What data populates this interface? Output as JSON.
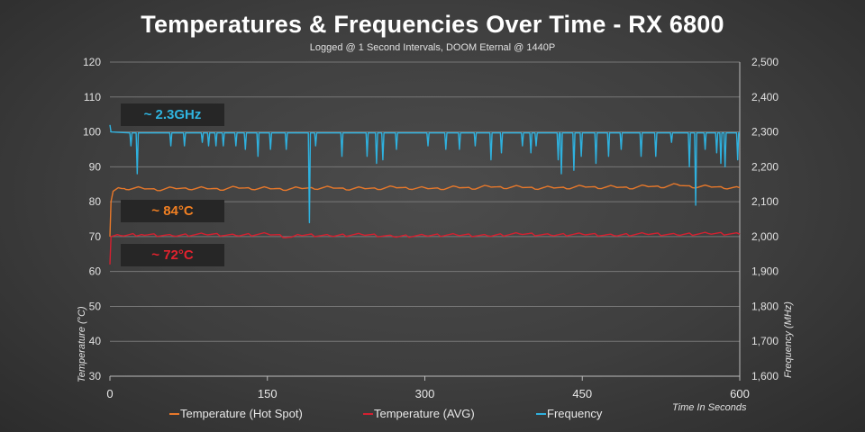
{
  "chart_data": {
    "type": "line",
    "title": "Temperatures & Frequencies Over Time - RX 6800",
    "subtitle": "Logged @ 1 Second Intervals, DOOM Eternal @ 1440P",
    "xlabel": "Time In Seconds",
    "ylabel": "Temperature (°C)",
    "y2label": "Frequency (MHz)",
    "xlim": [
      0,
      600
    ],
    "ylim": [
      30,
      120
    ],
    "y2lim": [
      1600,
      2500
    ],
    "xticks": [
      "0",
      "150",
      "300",
      "450",
      "600"
    ],
    "yticks": [
      "30",
      "40",
      "50",
      "60",
      "70",
      "80",
      "90",
      "100",
      "110",
      "120"
    ],
    "y2ticks": [
      "1,600",
      "1,700",
      "1,800",
      "1,900",
      "2,000",
      "2,100",
      "2,200",
      "2,300",
      "2,400",
      "2,500"
    ],
    "grid": true,
    "legend_position": "bottom",
    "series": [
      {
        "name": "Temperature (Hot Spot)",
        "axis": "left",
        "color": "#e8782a",
        "points": [
          [
            0,
            70
          ],
          [
            1,
            80
          ],
          [
            3,
            83
          ],
          [
            8,
            84
          ],
          [
            15,
            83.5
          ],
          [
            30,
            84
          ],
          [
            45,
            83.2
          ],
          [
            60,
            84
          ],
          [
            75,
            83.5
          ],
          [
            90,
            84
          ],
          [
            105,
            83.3
          ],
          [
            120,
            84.2
          ],
          [
            135,
            83.5
          ],
          [
            150,
            84
          ],
          [
            165,
            83.3
          ],
          [
            180,
            84
          ],
          [
            195,
            83.6
          ],
          [
            210,
            84.2
          ],
          [
            225,
            83.4
          ],
          [
            240,
            84
          ],
          [
            255,
            83.5
          ],
          [
            270,
            84.3
          ],
          [
            285,
            83.6
          ],
          [
            300,
            84
          ],
          [
            315,
            83.5
          ],
          [
            330,
            84.3
          ],
          [
            345,
            83.6
          ],
          [
            360,
            84.5
          ],
          [
            375,
            83.8
          ],
          [
            390,
            84.4
          ],
          [
            405,
            83.6
          ],
          [
            420,
            84.2
          ],
          [
            435,
            83.7
          ],
          [
            450,
            84.5
          ],
          [
            465,
            83.8
          ],
          [
            480,
            84.4
          ],
          [
            495,
            83.7
          ],
          [
            510,
            84.6
          ],
          [
            525,
            84
          ],
          [
            540,
            85
          ],
          [
            555,
            84
          ],
          [
            570,
            84.5
          ],
          [
            585,
            83.8
          ],
          [
            600,
            84
          ]
        ]
      },
      {
        "name": "Temperature (AVG)",
        "axis": "left",
        "color": "#d42030",
        "points": [
          [
            0,
            62
          ],
          [
            1,
            70
          ],
          [
            10,
            70.3
          ],
          [
            30,
            70.6
          ],
          [
            60,
            70.2
          ],
          [
            90,
            70.7
          ],
          [
            120,
            70.3
          ],
          [
            150,
            70.8
          ],
          [
            170,
            69.8
          ],
          [
            180,
            70.5
          ],
          [
            210,
            70.2
          ],
          [
            240,
            70.6
          ],
          [
            270,
            70
          ],
          [
            300,
            70.3
          ],
          [
            330,
            70.5
          ],
          [
            360,
            70.2
          ],
          [
            390,
            70.8
          ],
          [
            420,
            70.4
          ],
          [
            450,
            70.7
          ],
          [
            480,
            70.3
          ],
          [
            510,
            70.8
          ],
          [
            540,
            70.5
          ],
          [
            570,
            70.9
          ],
          [
            600,
            70.7
          ]
        ]
      },
      {
        "name": "Frequency",
        "axis": "right",
        "color": "#2fb1de",
        "baseline": 2297,
        "start": [
          [
            0,
            2320
          ],
          [
            1,
            2300
          ]
        ],
        "dips": [
          [
            20,
            2260
          ],
          [
            26,
            2180
          ],
          [
            58,
            2260
          ],
          [
            71,
            2260
          ],
          [
            88,
            2270
          ],
          [
            94,
            2260
          ],
          [
            101,
            2260
          ],
          [
            108,
            2260
          ],
          [
            120,
            2260
          ],
          [
            129,
            2250
          ],
          [
            141,
            2230
          ],
          [
            153,
            2250
          ],
          [
            168,
            2250
          ],
          [
            190,
            2040
          ],
          [
            196,
            2260
          ],
          [
            221,
            2230
          ],
          [
            245,
            2230
          ],
          [
            254,
            2210
          ],
          [
            260,
            2220
          ],
          [
            273,
            2250
          ],
          [
            303,
            2260
          ],
          [
            320,
            2250
          ],
          [
            333,
            2250
          ],
          [
            348,
            2260
          ],
          [
            363,
            2220
          ],
          [
            373,
            2240
          ],
          [
            393,
            2260
          ],
          [
            401,
            2240
          ],
          [
            406,
            2260
          ],
          [
            427,
            2220
          ],
          [
            430,
            2180
          ],
          [
            442,
            2190
          ],
          [
            449,
            2230
          ],
          [
            463,
            2210
          ],
          [
            475,
            2230
          ],
          [
            487,
            2250
          ],
          [
            506,
            2230
          ],
          [
            520,
            2230
          ],
          [
            535,
            2270
          ],
          [
            552,
            2200
          ],
          [
            558,
            2090
          ],
          [
            567,
            2250
          ],
          [
            578,
            2240
          ],
          [
            582,
            2210
          ],
          [
            586,
            2200
          ],
          [
            598,
            2220
          ]
        ]
      }
    ]
  },
  "annotations": [
    {
      "text": "~ 2.3GHz",
      "color": "#2fb4e0"
    },
    {
      "text": "~ 84°C",
      "color": "#f07f22"
    },
    {
      "text": "~ 72°C",
      "color": "#e3222e"
    }
  ]
}
